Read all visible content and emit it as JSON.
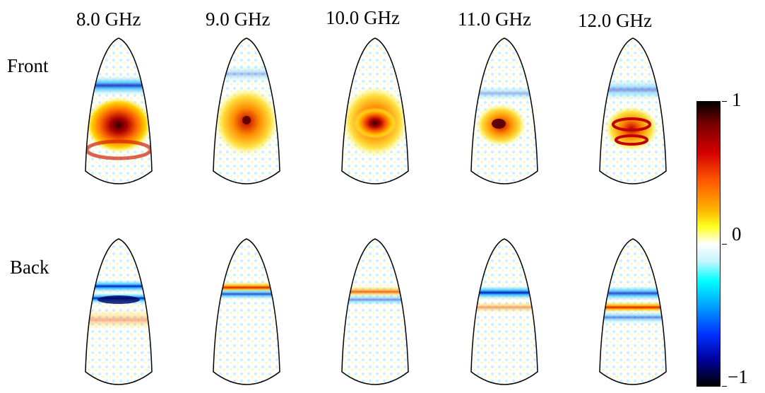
{
  "frequencies": [
    "8.0 GHz",
    "9.0 GHz",
    "10.0 GHz",
    "11.0 GHz",
    "12.0 GHz"
  ],
  "rows": [
    "Front",
    "Back"
  ],
  "colorbar": {
    "max_label": "1",
    "mid_label": "0",
    "min_label": "−1",
    "range": [
      -1,
      1
    ]
  },
  "colors": {
    "positive_peak": "#7a0000",
    "positive": "#ff5a00",
    "neutral": "#ffffff",
    "negative": "#0030ff",
    "negative_peak": "#00009a"
  }
}
